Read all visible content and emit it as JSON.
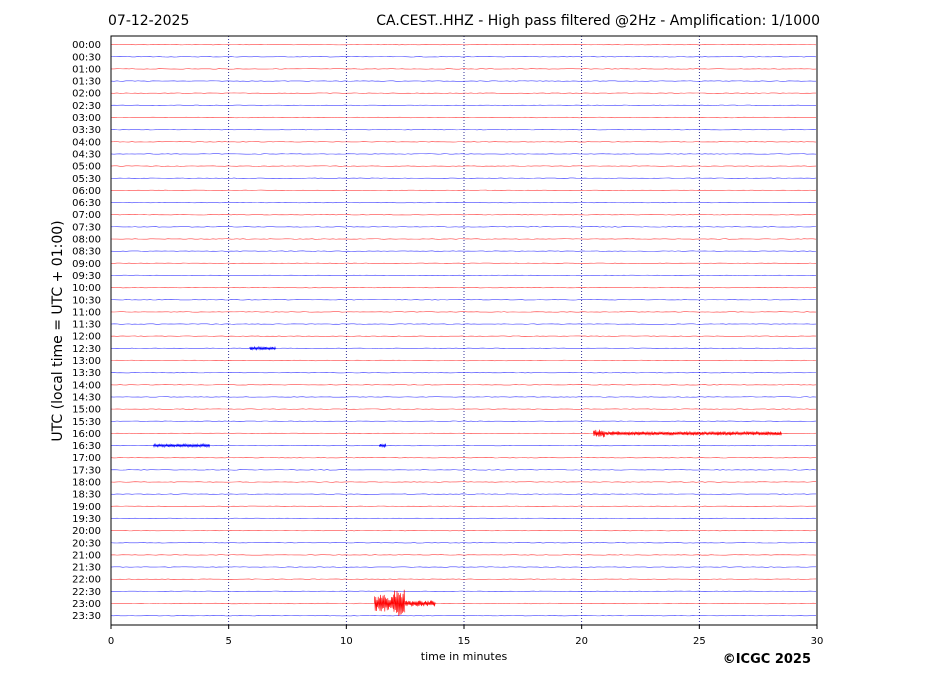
{
  "chart_data": {
    "type": "line",
    "date_label": "07-12-2025",
    "title": "CA.CEST..HHZ - High pass filtered @2Hz - Amplification: 1/1000",
    "xlabel": "time in minutes",
    "ylabel": "UTC (local time = UTC + 01:00)",
    "copyright": "©ICGC 2025",
    "xlim": [
      0,
      30
    ],
    "x_ticks": [
      0,
      5,
      10,
      15,
      20,
      25,
      30
    ],
    "row_labels": [
      "00:00",
      "00:30",
      "01:00",
      "01:30",
      "02:00",
      "02:30",
      "03:00",
      "03:30",
      "04:00",
      "04:30",
      "05:00",
      "05:30",
      "06:00",
      "06:30",
      "07:00",
      "07:30",
      "08:00",
      "08:30",
      "09:00",
      "09:30",
      "10:00",
      "10:30",
      "11:00",
      "11:30",
      "12:00",
      "12:30",
      "13:00",
      "13:30",
      "14:00",
      "14:30",
      "15:00",
      "15:30",
      "16:00",
      "16:30",
      "17:00",
      "17:30",
      "18:00",
      "18:30",
      "19:00",
      "19:30",
      "20:00",
      "20:30",
      "21:00",
      "21:30",
      "22:00",
      "22:30",
      "23:00",
      "23:30"
    ],
    "trace_colors": [
      "#ff0000",
      "#0000ff"
    ],
    "grid": "vertical dotted at tick marks",
    "events": [
      {
        "row": "12:30",
        "start_min": 5.9,
        "end_min": 7.0,
        "amplitude": 1.5
      },
      {
        "row": "16:00",
        "start_min": 20.5,
        "end_min": 21.0,
        "amplitude": 4
      },
      {
        "row": "16:00",
        "start_min": 21.0,
        "end_min": 28.5,
        "amplitude": 2
      },
      {
        "row": "16:30",
        "start_min": 1.8,
        "end_min": 4.2,
        "amplitude": 1.5
      },
      {
        "row": "16:30",
        "start_min": 11.4,
        "end_min": 11.7,
        "amplitude": 2
      },
      {
        "row": "23:00",
        "start_min": 11.2,
        "end_min": 12.0,
        "amplitude": 9
      },
      {
        "row": "23:00",
        "start_min": 12.0,
        "end_min": 12.5,
        "amplitude": 14
      },
      {
        "row": "23:00",
        "start_min": 12.5,
        "end_min": 13.8,
        "amplitude": 3
      }
    ]
  }
}
